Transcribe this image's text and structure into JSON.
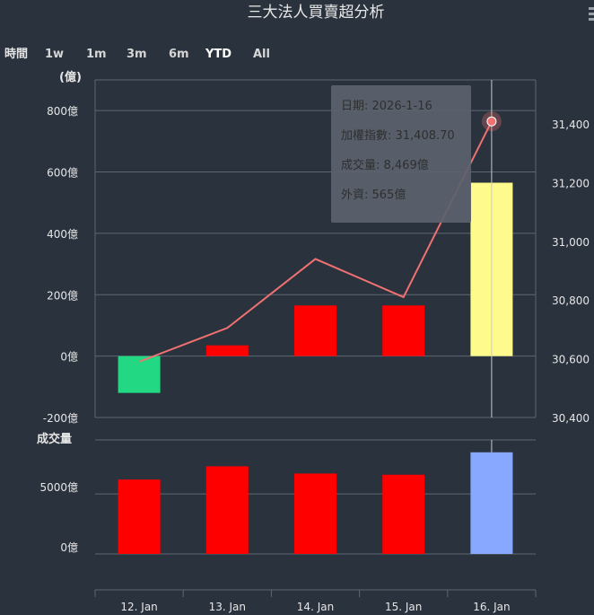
{
  "title": "三大法人買賣超分析",
  "range_selector": {
    "label": "時間",
    "buttons": [
      "1w",
      "1m",
      "3m",
      "6m",
      "YTD",
      "All"
    ],
    "selected": "YTD"
  },
  "colors": {
    "background": "#2a323d",
    "grid": "#5e6772",
    "positive_bar": "#ff0000",
    "negative_bar": "#22d883",
    "highlight_bar": "#fffa8c",
    "index_line": "#f07171",
    "volume_bar": "#ff0000",
    "volume_highlight": "#88a8ff",
    "tooltip_bg": "#5b626c"
  },
  "chart_data": {
    "type": "bar",
    "categories": [
      "12. Jan",
      "13. Jan",
      "14. Jan",
      "15. Jan",
      "16. Jan"
    ],
    "top_panel": {
      "unit_label": "(億)",
      "left_axis": {
        "ylim": [
          -200,
          900
        ],
        "ticks": [
          "-200億",
          "0億",
          "200億",
          "400億",
          "600億",
          "800億"
        ],
        "tick_values": [
          -200,
          0,
          200,
          400,
          600,
          800
        ]
      },
      "right_axis": {
        "ylim": [
          30400,
          31550
        ],
        "ticks": [
          "30,400",
          "30,600",
          "30,800",
          "31,000",
          "31,200",
          "31,400"
        ],
        "tick_values": [
          30400,
          30600,
          30800,
          31000,
          31200,
          31400
        ]
      },
      "series": [
        {
          "name": "外資",
          "values": [
            -120,
            35,
            165,
            165,
            565
          ]
        },
        {
          "name": "加權指數",
          "values": [
            30590,
            30705,
            30940,
            30810,
            31408.7
          ]
        }
      ]
    },
    "bottom_panel": {
      "axis_title": "成交量",
      "ylim": [
        0,
        9500
      ],
      "ticks": [
        "0億",
        "5000億"
      ],
      "tick_values": [
        0,
        5000
      ],
      "series": [
        {
          "name": "成交量",
          "values": [
            6200,
            7300,
            6700,
            6600,
            8469
          ]
        }
      ]
    },
    "highlight_index": 4,
    "grid": true
  },
  "tooltip": {
    "date": "日期: 2026-1-16",
    "index": "加權指數: 31,408.70",
    "volume": "成交量: 8,469億",
    "foreign": "外資: 565億"
  }
}
